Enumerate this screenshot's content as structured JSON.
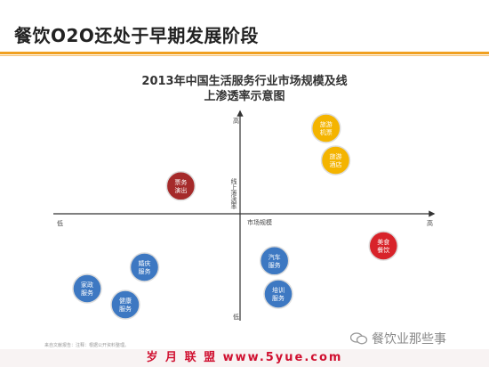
{
  "page": {
    "title": "餐饮O2O还处于早期发展阶段",
    "source_note": "来自文献报告：注释：根据公开资料整理。",
    "wechat_label": "餐饮业那些事",
    "watermark": "岁 月 联 盟 www.5yue.com"
  },
  "colors": {
    "accent_rule": "#f0a020",
    "yellow": "#f4b400",
    "blue": "#3d78c2",
    "red": "#d8232a",
    "dark_red": "#a52a2a"
  },
  "chart_data": {
    "type": "scatter",
    "title_lines": [
      "2013年中国生活服务行业市场规模及线",
      "上渗透率示意图"
    ],
    "axes": {
      "x_label": "市场规模",
      "x_low": "低",
      "x_high": "高",
      "y_label": "线上渗透率",
      "y_high": "高",
      "y_low": "低",
      "xlim": [
        -1,
        1
      ],
      "ylim": [
        -1,
        1
      ]
    },
    "points": [
      {
        "label": "旅游机票",
        "x": 0.45,
        "y": 0.8,
        "color": "yellow"
      },
      {
        "label": "旅游酒店",
        "x": 0.5,
        "y": 0.5,
        "color": "yellow"
      },
      {
        "label": "票务演出",
        "x": -0.31,
        "y": 0.26,
        "color": "dark_red"
      },
      {
        "label": "美食餐饮",
        "x": 0.75,
        "y": -0.3,
        "color": "red"
      },
      {
        "label": "汽车服务",
        "x": 0.18,
        "y": -0.44,
        "color": "blue"
      },
      {
        "label": "培训服务",
        "x": 0.2,
        "y": -0.75,
        "color": "blue"
      },
      {
        "label": "婚庆服务",
        "x": -0.5,
        "y": -0.5,
        "color": "blue"
      },
      {
        "label": "家政服务",
        "x": -0.8,
        "y": -0.7,
        "color": "blue"
      },
      {
        "label": "健康服务",
        "x": -0.6,
        "y": -0.85,
        "color": "blue"
      }
    ]
  }
}
